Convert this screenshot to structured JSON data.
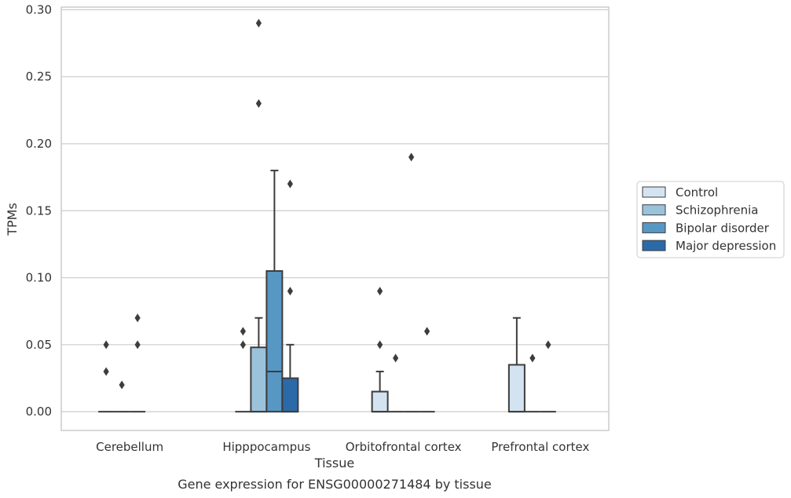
{
  "caption": "Gene expression for ENSG00000271484 by tissue",
  "chart_data": {
    "type": "box",
    "xlabel": "Tissue",
    "ylabel": "TPMs",
    "ylim": [
      -0.014,
      0.302
    ],
    "yticks": [
      0.0,
      0.05,
      0.1,
      0.15,
      0.2,
      0.25,
      0.3
    ],
    "ytick_labels": [
      "0.00",
      "0.05",
      "0.10",
      "0.15",
      "0.20",
      "0.25",
      "0.30"
    ],
    "grid": "horizontal",
    "legend_position": "right",
    "categories": [
      "Cerebellum",
      "Hipppocampus",
      "Orbitofrontal cortex",
      "Prefrontal cortex"
    ],
    "series": [
      {
        "name": "Control",
        "color": "#d4e3f1",
        "boxes": [
          {
            "q1": 0,
            "median": 0,
            "q3": 0,
            "whisker_low": 0,
            "whisker_high": 0,
            "outliers": [
              0.05,
              0.03
            ]
          },
          {
            "q1": 0,
            "median": 0,
            "q3": 0,
            "whisker_low": 0,
            "whisker_high": 0,
            "outliers": [
              0.06,
              0.05
            ]
          },
          {
            "q1": 0,
            "median": 0,
            "q3": 0.015,
            "whisker_low": 0,
            "whisker_high": 0.03,
            "outliers": [
              0.09,
              0.05
            ]
          },
          {
            "q1": 0,
            "median": 0,
            "q3": 0.035,
            "whisker_low": 0,
            "whisker_high": 0.07,
            "outliers": []
          }
        ]
      },
      {
        "name": "Schizophrenia",
        "color": "#9ac2db",
        "boxes": [
          {
            "q1": 0,
            "median": 0,
            "q3": 0,
            "whisker_low": 0,
            "whisker_high": 0,
            "outliers": [
              0.02
            ]
          },
          {
            "q1": 0,
            "median": 0,
            "q3": 0.048,
            "whisker_low": 0,
            "whisker_high": 0.07,
            "outliers": [
              0.23,
              0.29
            ]
          },
          {
            "q1": 0,
            "median": 0,
            "q3": 0,
            "whisker_low": 0,
            "whisker_high": 0,
            "outliers": [
              0.04
            ]
          },
          {
            "q1": 0,
            "median": 0,
            "q3": 0,
            "whisker_low": 0,
            "whisker_high": 0,
            "outliers": [
              0.04
            ]
          }
        ]
      },
      {
        "name": "Bipolar disorder",
        "color": "#5797c4",
        "boxes": [
          {
            "q1": 0,
            "median": 0,
            "q3": 0,
            "whisker_low": 0,
            "whisker_high": 0,
            "outliers": [
              0.05,
              0.07
            ]
          },
          {
            "q1": 0,
            "median": 0.03,
            "q3": 0.105,
            "whisker_low": 0,
            "whisker_high": 0.18,
            "outliers": []
          },
          {
            "q1": 0,
            "median": 0,
            "q3": 0,
            "whisker_low": 0,
            "whisker_high": 0,
            "outliers": [
              0.19
            ]
          },
          {
            "q1": 0,
            "median": 0,
            "q3": 0,
            "whisker_low": 0,
            "whisker_high": 0,
            "outliers": [
              0.05
            ]
          }
        ]
      },
      {
        "name": "Major depression",
        "color": "#2b6aa8",
        "boxes": [
          null,
          {
            "q1": 0,
            "median": 0,
            "q3": 0.025,
            "whisker_low": 0,
            "whisker_high": 0.05,
            "outliers": [
              0.17,
              0.09
            ]
          },
          {
            "q1": 0,
            "median": 0,
            "q3": 0,
            "whisker_low": 0,
            "whisker_high": 0,
            "outliers": [
              0.06
            ]
          },
          null
        ]
      }
    ]
  }
}
